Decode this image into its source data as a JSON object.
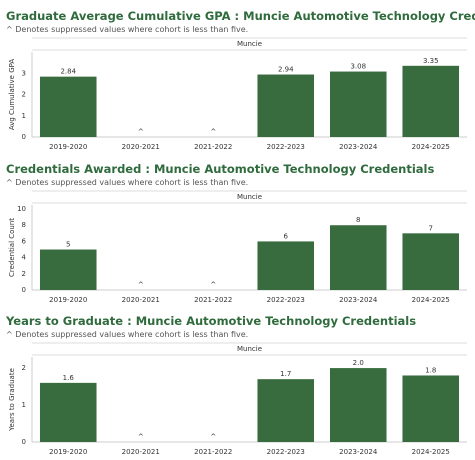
{
  "chart_data": [
    {
      "type": "bar",
      "title": "Graduate Average Cumulative GPA : Muncie Automotive Technology Credentials",
      "subtitle": "^ Denotes suppressed values where cohort is less than five.",
      "facet": "Muncie",
      "y_label": "Avg Cumulative GPA",
      "categories": [
        "2019-2020",
        "2020-2021",
        "2021-2022",
        "2022-2023",
        "2023-2024",
        "2024-2025"
      ],
      "values": [
        2.84,
        null,
        null,
        2.94,
        3.08,
        3.35
      ],
      "value_labels": [
        "2.84",
        "^",
        "^",
        "2.94",
        "3.08",
        "3.35"
      ],
      "color": "#386b3d",
      "ylim": [
        0,
        4
      ],
      "yticks": [
        0,
        1,
        2,
        3
      ],
      "grid": false
    },
    {
      "type": "bar",
      "title": "Credentials Awarded : Muncie Automotive Technology Credentials",
      "subtitle": "^ Denotes suppressed values where cohort is less than five.",
      "facet": "Muncie",
      "y_label": "Credential Count",
      "categories": [
        "2019-2020",
        "2020-2021",
        "2021-2022",
        "2022-2023",
        "2023-2024",
        "2024-2025"
      ],
      "values": [
        5,
        null,
        null,
        6,
        8,
        7
      ],
      "value_labels": [
        "5",
        "^",
        "^",
        "6",
        "8",
        "7"
      ],
      "color": "#386b3d",
      "ylim": [
        0,
        10.5
      ],
      "yticks": [
        0,
        2,
        4,
        6,
        8,
        10
      ],
      "grid": false
    },
    {
      "type": "bar",
      "title": "Years to Graduate : Muncie Automotive Technology Credentials",
      "subtitle": "^ Denotes suppressed values where cohort is less than five.",
      "facet": "Muncie",
      "y_label": "Years to Graduate",
      "categories": [
        "2019-2020",
        "2020-2021",
        "2021-2022",
        "2022-2023",
        "2023-2024",
        "2024-2025"
      ],
      "values": [
        1.6,
        null,
        null,
        1.7,
        2.0,
        1.8
      ],
      "value_labels": [
        "1.6",
        "^",
        "^",
        "1.7",
        "2.0",
        "1.8"
      ],
      "color": "#386b3d",
      "ylim": [
        0,
        2.3
      ],
      "yticks": [
        0,
        1,
        2
      ],
      "grid": false
    }
  ]
}
